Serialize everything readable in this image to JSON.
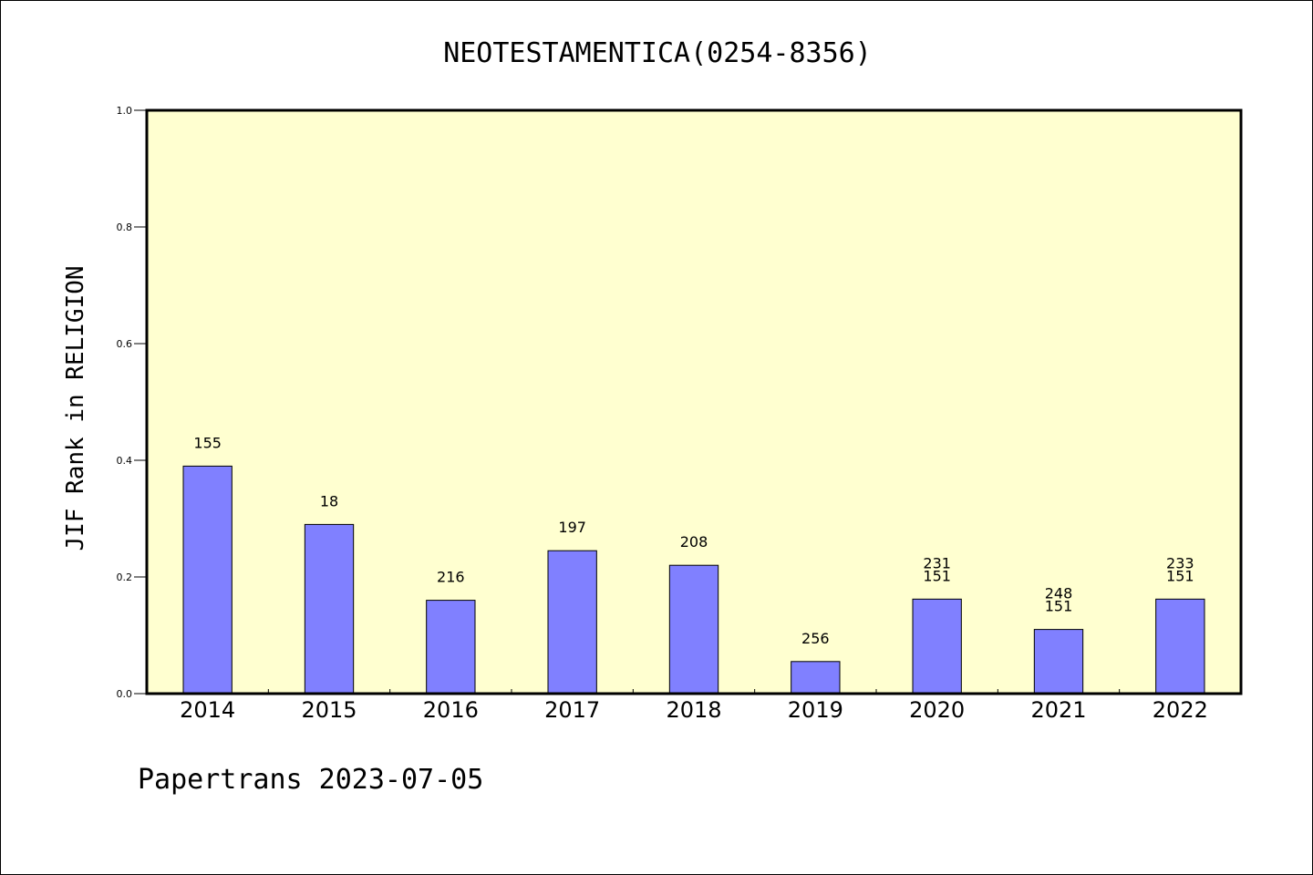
{
  "footer": "Papertrans 2023-07-05",
  "chart_data": {
    "type": "bar",
    "title": "NEOTESTAMENTICA(0254-8356)",
    "xlabel": "",
    "ylabel": "JIF Rank in RELIGION",
    "ylim": [
      0,
      1.0
    ],
    "yticks": [
      "0.0",
      "0.2",
      "0.4",
      "0.6",
      "0.8",
      "1.0"
    ],
    "categories": [
      "2014",
      "2015",
      "2016",
      "2017",
      "2018",
      "2019",
      "2020",
      "2021",
      "2022"
    ],
    "values": [
      0.39,
      0.29,
      0.16,
      0.245,
      0.22,
      0.055,
      0.162,
      0.11,
      0.162
    ],
    "bar_labels": [
      [
        "155"
      ],
      [
        "18"
      ],
      [
        "216"
      ],
      [
        "197"
      ],
      [
        "208"
      ],
      [
        "256"
      ],
      [
        "231",
        "151"
      ],
      [
        "248",
        "151"
      ],
      [
        "233",
        "151"
      ]
    ],
    "grid": false,
    "legend": "none",
    "colors": {
      "plot_background": "#ffffd0",
      "bar_fill": "#8080ff",
      "bar_stroke": "#000000",
      "axis": "#000000"
    }
  }
}
